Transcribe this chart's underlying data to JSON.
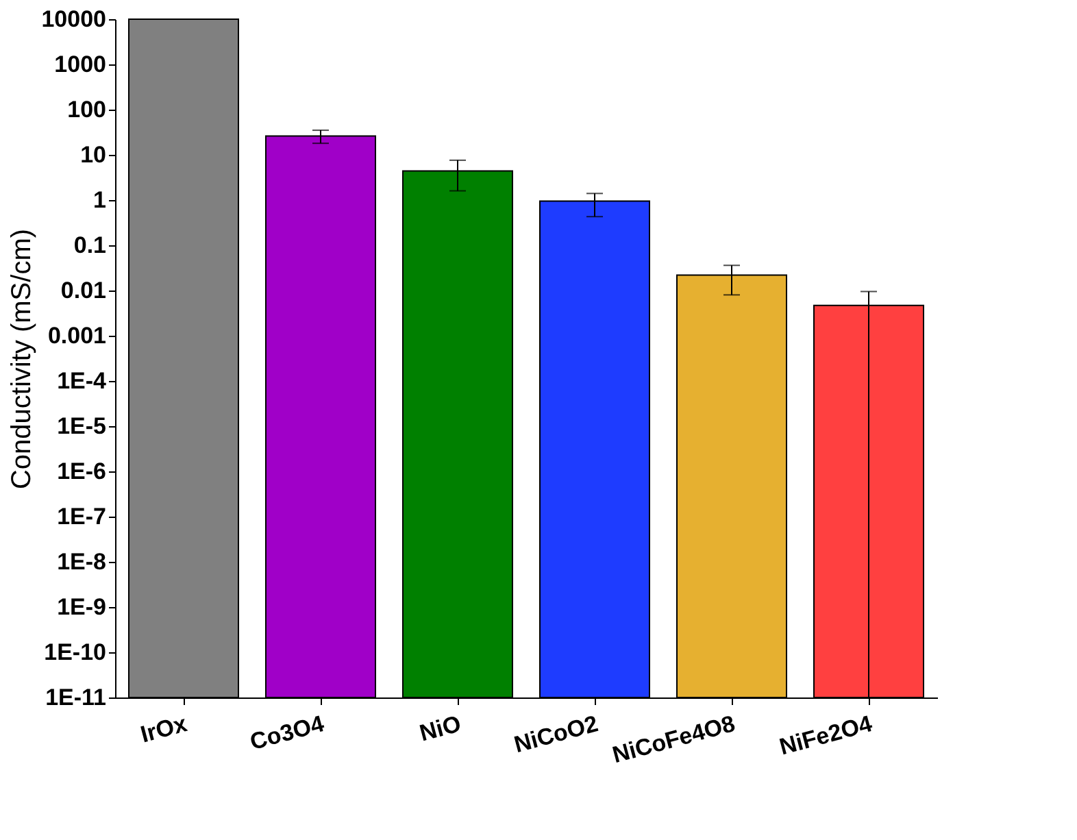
{
  "chart_data": {
    "type": "bar",
    "ylabel": "Conductivity (mS/cm)",
    "categories": [
      "IrOx",
      "Co3O4",
      "NiO",
      "NiCoO2",
      "NiCoFe4O8",
      "NiFe2O4"
    ],
    "values": [
      10000,
      26,
      4.4,
      0.95,
      0.022,
      0.0047
    ],
    "colors": [
      "#808080",
      "#a000c8",
      "#008000",
      "#1e3cff",
      "#e6b030",
      "#ff4040"
    ],
    "errors": [
      null,
      [
        18,
        35
      ],
      [
        1.6,
        7.6
      ],
      [
        0.43,
        1.4
      ],
      [
        0.008,
        0.036
      ],
      [
        1e-11,
        0.0095
      ]
    ],
    "log": true,
    "ylim": [
      1e-11,
      10000
    ],
    "yticks": [
      {
        "value": 1e-11,
        "label": "1E-11"
      },
      {
        "value": 1e-10,
        "label": "1E-10"
      },
      {
        "value": 1e-09,
        "label": "1E-9"
      },
      {
        "value": 1e-08,
        "label": "1E-8"
      },
      {
        "value": 1e-07,
        "label": "1E-7"
      },
      {
        "value": 1e-06,
        "label": "1E-6"
      },
      {
        "value": 1e-05,
        "label": "1E-5"
      },
      {
        "value": 0.0001,
        "label": "1E-4"
      },
      0.001,
      0.01,
      0.1,
      1,
      10,
      100,
      1000,
      10000
    ],
    "grid": false
  }
}
